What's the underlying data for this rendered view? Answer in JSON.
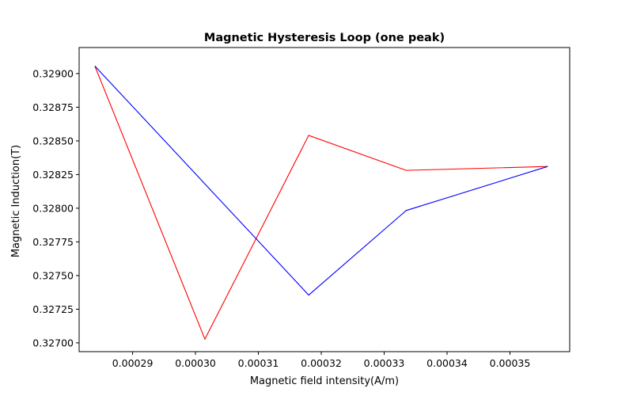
{
  "chart_data": {
    "type": "line",
    "title": "Magnetic Hysteresis Loop (one peak)",
    "xlabel": "Magnetic field intensity(A/m)",
    "ylabel": "Magnetic Induction(T)",
    "xlim": [
      0.0002815,
      0.0003595
    ],
    "ylim": [
      0.3269348,
      0.3291935
    ],
    "x_ticks": [
      0.00029,
      0.0003,
      0.00031,
      0.00032,
      0.00033,
      0.00034,
      0.00035
    ],
    "x_tick_labels": [
      "0.00029",
      "0.00030",
      "0.00031",
      "0.00032",
      "0.00033",
      "0.00034",
      "0.00035"
    ],
    "y_ticks": [
      0.327,
      0.32725,
      0.3275,
      0.32775,
      0.328,
      0.32825,
      0.3285,
      0.32875,
      0.329
    ],
    "y_tick_labels": [
      "0.32700",
      "0.32725",
      "0.32750",
      "0.32775",
      "0.32800",
      "0.32825",
      "0.32850",
      "0.32875",
      "0.32900"
    ],
    "grid": false,
    "series": [
      {
        "color": "#ff0000",
        "x": [
          0.000284,
          0.0003015,
          0.000318,
          0.0003335,
          0.000356
        ],
        "y": [
          0.329056,
          0.327028,
          0.328541,
          0.328281,
          0.32831
        ]
      },
      {
        "color": "#0000ff",
        "x": [
          0.000284,
          0.000318,
          0.0003335,
          0.000356
        ],
        "y": [
          0.329056,
          0.327355,
          0.327983,
          0.32831
        ]
      }
    ]
  }
}
